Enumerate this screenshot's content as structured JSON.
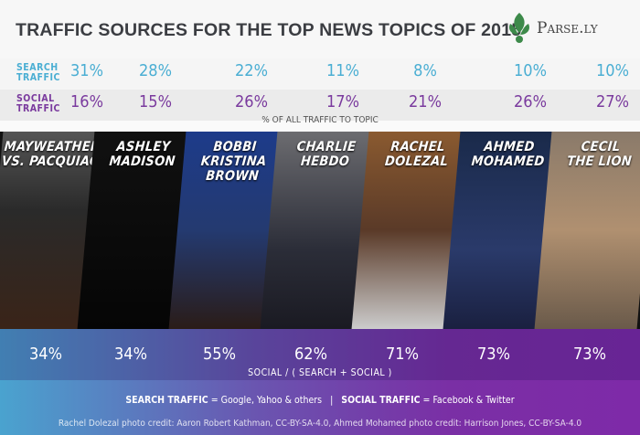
{
  "header": {
    "title": "TRAFFIC SOURCES FOR THE TOP NEWS TOPICS OF 2015",
    "logo_text": "Parse.ly",
    "logo_color": "#3d8a4a"
  },
  "stats": {
    "search_label": [
      "SEARCH",
      "TRAFFIC"
    ],
    "social_label": [
      "SOCIAL",
      "TRAFFIC"
    ],
    "note": "% OF ALL TRAFFIC TO TOPIC",
    "search_color": "#4aaed3",
    "social_color": "#7a3a9e"
  },
  "topics": [
    {
      "name": [
        "MAYWEATHER",
        "VS. PACQUIAO"
      ],
      "search": "31%",
      "social": "16%",
      "ratio": "34%"
    },
    {
      "name": [
        "ASHLEY",
        "MADISON"
      ],
      "search": "28%",
      "social": "15%",
      "ratio": "34%"
    },
    {
      "name": [
        "BOBBI",
        "KRISTINA",
        "BROWN"
      ],
      "search": "22%",
      "social": "26%",
      "ratio": "55%"
    },
    {
      "name": [
        "CHARLIE",
        "HEBDO"
      ],
      "search": "11%",
      "social": "17%",
      "ratio": "62%"
    },
    {
      "name": [
        "RACHEL",
        "DOLEZAL"
      ],
      "search": "8%",
      "social": "21%",
      "ratio": "71%"
    },
    {
      "name": [
        "AHMED",
        "MOHAMED"
      ],
      "search": "10%",
      "social": "26%",
      "ratio": "73%"
    },
    {
      "name": [
        "CECIL",
        "THE LION"
      ],
      "search": "10%",
      "social": "27%",
      "ratio": "73%"
    }
  ],
  "bottom": {
    "ratio_note": "SOCIAL / ( SEARCH + SOCIAL )",
    "legend_search_key": "SEARCH TRAFFIC",
    "legend_search_val": " = Google, Yahoo & others",
    "legend_sep": "|",
    "legend_social_key": "SOCIAL TRAFFIC",
    "legend_social_val": " = Facebook & Twitter",
    "credit": "Rachel Dolezal photo credit: Aaron Robert Kathman, CC-BY-SA-4.0,  Ahmed Mohamed photo credit: Harrison Jones, CC-BY-SA-4.0"
  }
}
